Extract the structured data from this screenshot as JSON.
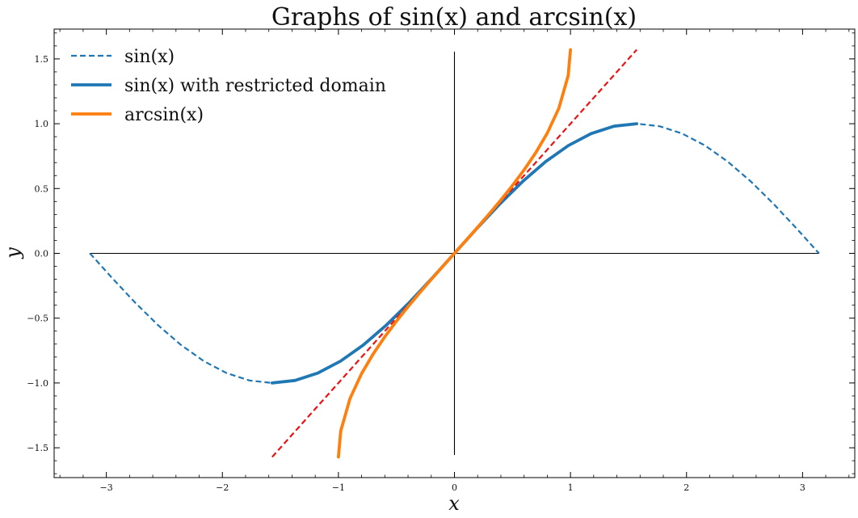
{
  "chart_data": {
    "type": "line",
    "title": "Graphs of sin(x) and arcsin(x)",
    "xlabel": "x",
    "ylabel": "y",
    "xlim": [
      -3.45,
      3.45
    ],
    "ylim": [
      -1.73,
      1.73
    ],
    "grid": false,
    "legend_position": "top-left",
    "x_ticks": [
      {
        "value": -3,
        "label": "−3"
      },
      {
        "value": -2,
        "label": "−2"
      },
      {
        "value": -1,
        "label": "−1"
      },
      {
        "value": 0,
        "label": "0"
      },
      {
        "value": 1,
        "label": "1"
      },
      {
        "value": 2,
        "label": "2"
      },
      {
        "value": 3,
        "label": "3"
      }
    ],
    "y_ticks": [
      {
        "value": -1.5,
        "label": "−1.5"
      },
      {
        "value": -1.0,
        "label": "−1.0"
      },
      {
        "value": -0.5,
        "label": "−0.5"
      },
      {
        "value": 0.0,
        "label": "0.0"
      },
      {
        "value": 0.5,
        "label": "0.5"
      },
      {
        "value": 1.0,
        "label": "1.0"
      },
      {
        "value": 1.5,
        "label": "1.5"
      }
    ],
    "series": [
      {
        "name": "sin(x)",
        "color": "#1f77b4",
        "style": "dashed",
        "x": [
          -3.1416,
          -2.9452,
          -2.7489,
          -2.5525,
          -2.3562,
          -2.1598,
          -1.9635,
          -1.7671,
          -1.5708,
          -1.3744,
          -1.1781,
          -0.9817,
          -0.7854,
          -0.589,
          -0.3927,
          -0.1963,
          0.0,
          0.1963,
          0.3927,
          0.589,
          0.7854,
          0.9817,
          1.1781,
          1.3744,
          1.5708,
          1.7671,
          1.9635,
          2.1598,
          2.3562,
          2.5525,
          2.7489,
          2.9452,
          3.1416
        ],
        "y": [
          0.0,
          -0.1951,
          -0.3827,
          -0.5556,
          -0.7071,
          -0.8315,
          -0.9239,
          -0.9808,
          -1.0,
          -0.9808,
          -0.9239,
          -0.8315,
          -0.7071,
          -0.5556,
          -0.3827,
          -0.1951,
          0.0,
          0.1951,
          0.3827,
          0.5556,
          0.7071,
          0.8315,
          0.9239,
          0.9808,
          1.0,
          0.9808,
          0.9239,
          0.8315,
          0.7071,
          0.5556,
          0.3827,
          0.1951,
          0.0
        ]
      },
      {
        "name": "sin(x) with restricted domain",
        "color": "#1f77b4",
        "style": "solid-thick",
        "x": [
          -1.5708,
          -1.3744,
          -1.1781,
          -0.9817,
          -0.7854,
          -0.589,
          -0.3927,
          -0.1963,
          0.0,
          0.1963,
          0.3927,
          0.589,
          0.7854,
          0.9817,
          1.1781,
          1.3744,
          1.5708
        ],
        "y": [
          -1.0,
          -0.9808,
          -0.9239,
          -0.8315,
          -0.7071,
          -0.5556,
          -0.3827,
          -0.1951,
          0.0,
          0.1951,
          0.3827,
          0.5556,
          0.7071,
          0.8315,
          0.9239,
          0.9808,
          1.0
        ]
      },
      {
        "name": "arcsin(x)",
        "color": "#ff7f0e",
        "style": "solid-thick",
        "x": [
          -1.0,
          -0.98,
          -0.9,
          -0.8,
          -0.7,
          -0.6,
          -0.5,
          -0.4,
          -0.3,
          -0.2,
          -0.1,
          0.0,
          0.1,
          0.2,
          0.3,
          0.4,
          0.5,
          0.6,
          0.7,
          0.8,
          0.9,
          0.98,
          1.0
        ],
        "y": [
          -1.5708,
          -1.3705,
          -1.1198,
          -0.9273,
          -0.7754,
          -0.6435,
          -0.5236,
          -0.4115,
          -0.3047,
          -0.2014,
          -0.1002,
          0.0,
          0.1002,
          0.2014,
          0.3047,
          0.4115,
          0.5236,
          0.6435,
          0.7754,
          0.9273,
          1.1198,
          1.3705,
          1.5708
        ]
      },
      {
        "color": "#ee1111",
        "style": "dashed",
        "x": [
          -1.5708,
          1.5708
        ],
        "y": [
          -1.5708,
          1.5708
        ]
      },
      {
        "color": "#000000",
        "style": "thin",
        "x": [
          -3.1416,
          3.1416
        ],
        "y": [
          0.0,
          0.0
        ]
      },
      {
        "color": "#000000",
        "style": "thin",
        "x": [
          0.0,
          0.0
        ],
        "y": [
          -1.5533,
          1.5533
        ]
      }
    ]
  }
}
